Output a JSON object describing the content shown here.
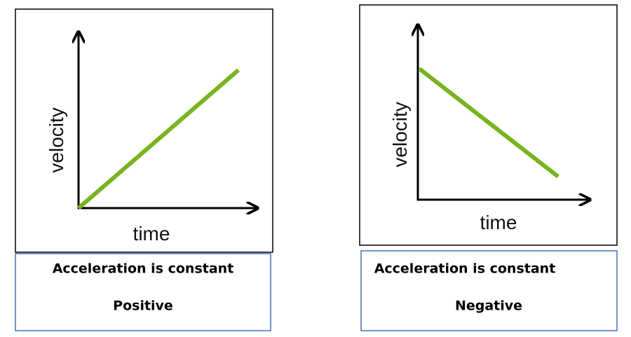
{
  "panels": [
    {
      "y_axis_label": "velocity",
      "x_axis_label": "time",
      "caption": {
        "line1": "Acceleration is constant",
        "line2": "Positive"
      }
    },
    {
      "y_axis_label": "velocity",
      "x_axis_label": "time",
      "caption": {
        "line1": "Acceleration is constant",
        "line2": "Negative"
      }
    }
  ]
}
